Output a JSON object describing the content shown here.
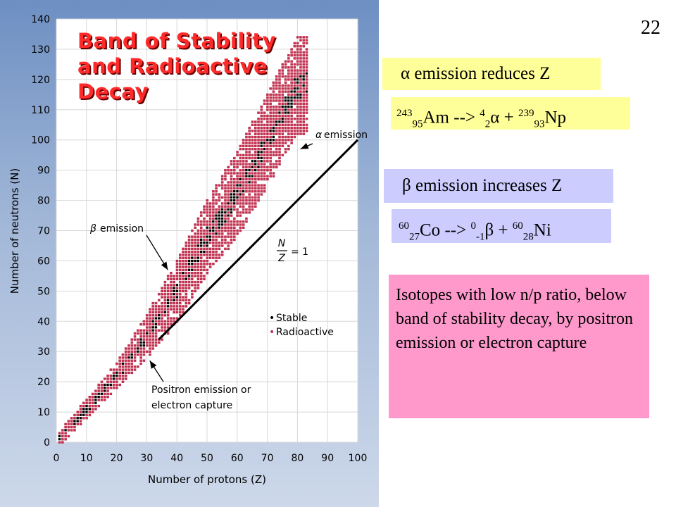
{
  "slide": {
    "number": "22",
    "title_lines": [
      "Band of Stability",
      "and Radioactive",
      "Decay"
    ]
  },
  "boxes": {
    "alpha": {
      "greek": "α",
      "text": "emission reduces Z"
    },
    "alpha_eq": {
      "parent_mass": "243",
      "parent_z": "95",
      "parent": "Am",
      "arrow": "-->",
      "alpha_mass": "4",
      "alpha_z": "2",
      "alpha_sym": "α",
      "plus": "+",
      "daughter_mass": "239",
      "daughter_z": "93",
      "daughter": "Np"
    },
    "beta": {
      "greek": "β",
      "text": "emission increases Z"
    },
    "beta_eq": {
      "parent_mass": "60",
      "parent_z": "27",
      "parent": "Co",
      "arrow": "-->",
      "beta_mass": "0",
      "beta_z": "-1",
      "beta_sym": "β",
      "plus": "+",
      "daughter_mass": "60",
      "daughter_z": "28",
      "daughter": "Ni"
    },
    "positron": "Isotopes with low n/p ratio, below band of stability decay, by positron emission or electron capture"
  },
  "chart_data": {
    "type": "scatter",
    "xlabel": "Number of protons (Z)",
    "ylabel": "Number of neutrons (N)",
    "xlim": [
      0,
      100
    ],
    "ylim": [
      0,
      140
    ],
    "x_ticks": [
      0,
      10,
      20,
      30,
      40,
      50,
      60,
      70,
      80,
      90,
      100
    ],
    "y_ticks": [
      0,
      10,
      20,
      30,
      40,
      50,
      60,
      70,
      80,
      90,
      100,
      110,
      120,
      130,
      140
    ],
    "grid": true,
    "legend": {
      "position": "lower-right",
      "entries": [
        {
          "name": "Stable",
          "color": "#000000"
        },
        {
          "name": "Radioactive",
          "color": "#c0304f"
        }
      ]
    },
    "ratio_line": {
      "label_num": "N",
      "label_den": "Z",
      "label_eq": "= 1",
      "x": [
        34,
        100
      ],
      "y": [
        34,
        100
      ]
    },
    "band_center": [
      {
        "z": 0,
        "n": 0
      },
      {
        "z": 10,
        "n": 11
      },
      {
        "z": 20,
        "n": 22
      },
      {
        "z": 30,
        "n": 35
      },
      {
        "z": 40,
        "n": 50
      },
      {
        "z": 50,
        "n": 68
      },
      {
        "z": 60,
        "n": 82
      },
      {
        "z": 70,
        "n": 100
      },
      {
        "z": 80,
        "n": 118
      }
    ],
    "band_halfwidth": [
      {
        "z": 0,
        "w": 2
      },
      {
        "z": 20,
        "w": 4
      },
      {
        "z": 40,
        "w": 10
      },
      {
        "z": 60,
        "w": 14
      },
      {
        "z": 80,
        "w": 16
      }
    ],
    "stable_halfwidth": [
      {
        "z": 0,
        "w": 1
      },
      {
        "z": 20,
        "w": 1.5
      },
      {
        "z": 50,
        "w": 3.5
      },
      {
        "z": 80,
        "w": 4
      }
    ],
    "band_max_z": 83,
    "annotations": [
      {
        "id": "alpha",
        "greek": "α",
        "text": "emission",
        "point": {
          "z": 81,
          "n": 97
        }
      },
      {
        "id": "beta",
        "greek": "β",
        "text": "emission",
        "point": {
          "z": 37,
          "n": 57
        }
      },
      {
        "id": "positron",
        "line1": "Positron emission or",
        "line2": "electron capture",
        "point": {
          "z": 31,
          "n": 27
        }
      }
    ],
    "colors": {
      "stable": "#000000",
      "radioactive": "#c0304f",
      "plot_bg": "#ffffff",
      "grid": "#d8d8d8"
    }
  }
}
